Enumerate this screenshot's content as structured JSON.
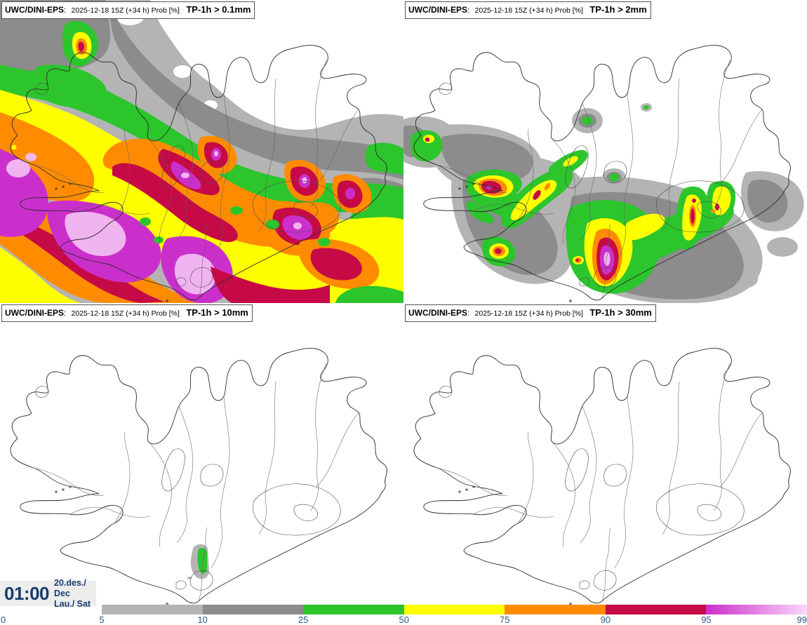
{
  "panels": [
    {
      "model": "UWC/DINI-EPS",
      "separator": ":",
      "details": "2025-12-18 15Z (+34 h) Prob [%]",
      "threshold": "TP-1h > 0.1mm"
    },
    {
      "model": "UWC/DINI-EPS",
      "separator": ":",
      "details": "2025-12-18 15Z (+34 h) Prob [%]",
      "threshold": "TP-1h > 2mm"
    },
    {
      "model": "UWC/DINI-EPS",
      "separator": ":",
      "details": "2025-12-18 15Z (+34 h) Prob [%]",
      "threshold": "TP-1h > 10mm"
    },
    {
      "model": "UWC/DINI-EPS",
      "separator": ":",
      "details": "2025-12-18 15Z (+34 h) Prob [%]",
      "threshold": "TP-1h > 30mm"
    }
  ],
  "footer": {
    "valid_time": "01:00",
    "date_local": "20.des./ Dec",
    "day_local": "Lau./ Sat"
  },
  "colorbar": {
    "unit": "Prob [%]",
    "tick_labels": [
      "0",
      "5",
      "10",
      "25",
      "50",
      "75",
      "90",
      "95",
      "99"
    ],
    "label_color": "#2d5a87",
    "segments": [
      {
        "range": "5-10",
        "color": "#b4b4b4"
      },
      {
        "range": "10-25",
        "color": "#8c8c8c"
      },
      {
        "range": "25-50",
        "color": "#2cc52c"
      },
      {
        "range": "50-75",
        "color": "#ffff00"
      },
      {
        "range": "75-90",
        "color": "#ff8c00"
      },
      {
        "range": "90-95",
        "color": "#c60a46"
      },
      {
        "range": "95-99",
        "gradient": [
          "#cb2fcb",
          "#fbd7fb"
        ]
      }
    ]
  },
  "palette": {
    "white": "#ffffff",
    "gray1": "#b4b4b4",
    "gray2": "#8c8c8c",
    "green": "#2cc52c",
    "yellow": "#ffff00",
    "orange": "#ff8c00",
    "crimson": "#c60a46",
    "magenta": "#cb2fcb",
    "pink": "#f0b4f0",
    "coast_line": "#2b2b2b",
    "boundary_line": "#606060",
    "time_text": "#153d6d",
    "timebox_bg": "#ededed"
  }
}
